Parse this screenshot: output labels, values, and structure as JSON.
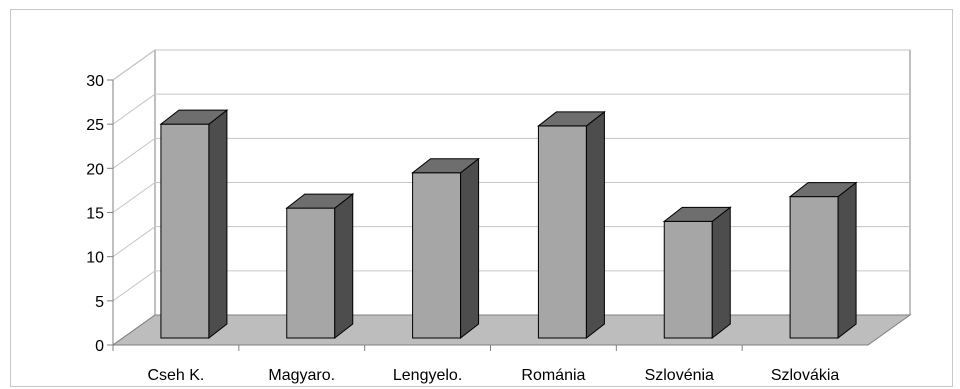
{
  "chart_data": {
    "type": "bar",
    "title": "",
    "xlabel": "",
    "ylabel": "",
    "categories": [
      "Cseh K.",
      "Magyaro.",
      "Lengyelo.",
      "Románia",
      "Szlovénia",
      "Szlovákia"
    ],
    "values": [
      25,
      15.5,
      19.5,
      24.8,
      14,
      16.8
    ],
    "ylim": [
      0,
      30
    ],
    "yticks": [
      0,
      5,
      10,
      15,
      20,
      25,
      30
    ],
    "grid": true,
    "style": "3d-column",
    "colors": {
      "bar_front": "#a6a6a6",
      "bar_top": "#6e6e6e",
      "bar_side": "#4d4d4d",
      "floor": "#bdbdbd",
      "grid": "#c6c6c6",
      "axis": "#808080"
    }
  }
}
